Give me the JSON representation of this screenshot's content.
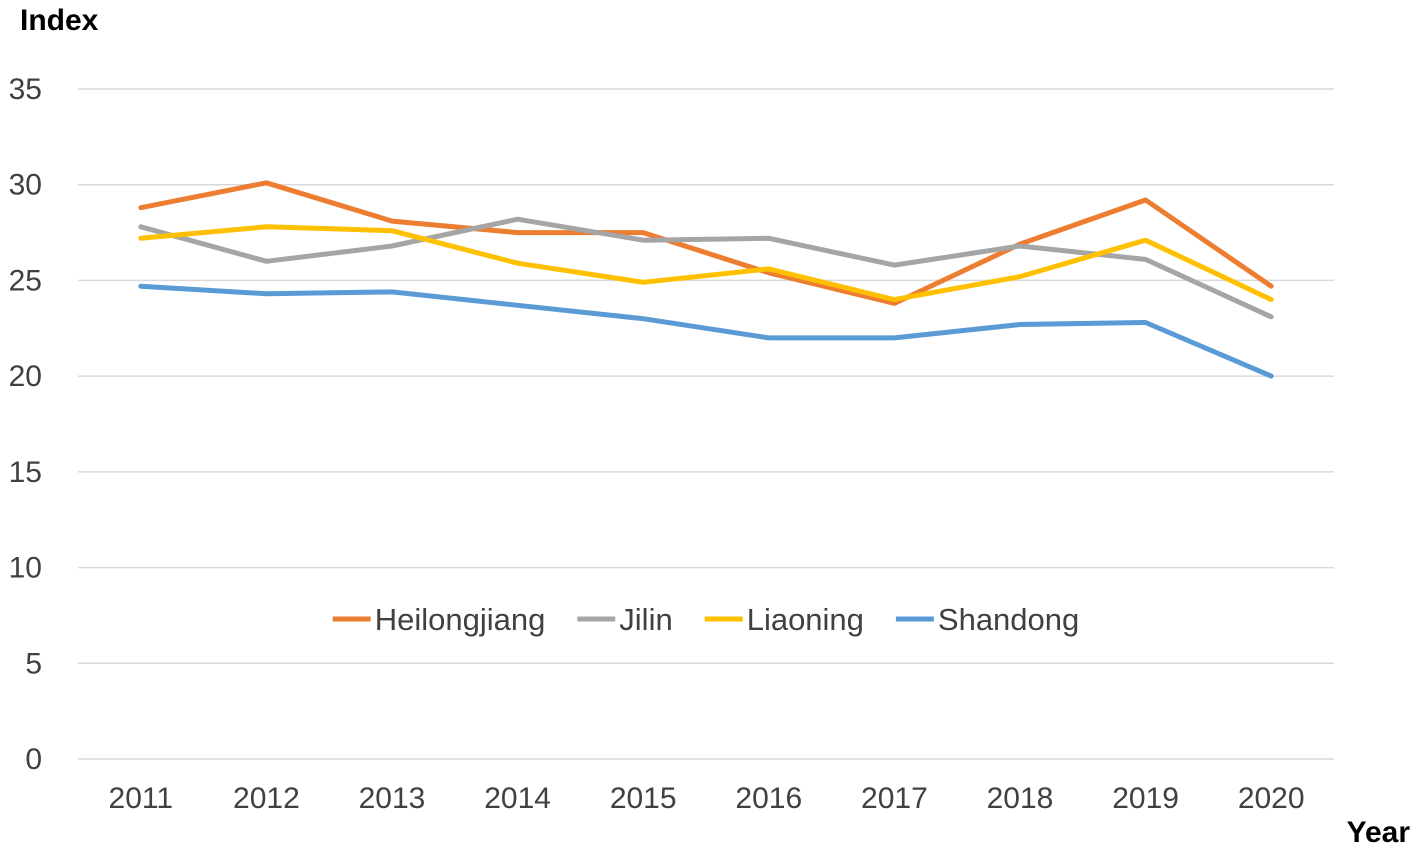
{
  "chart_data": {
    "type": "line",
    "title": "",
    "ylabel": "Index",
    "xlabel": "Year",
    "ylim": [
      0,
      35
    ],
    "yticks": [
      0,
      5,
      10,
      15,
      20,
      25,
      30,
      35
    ],
    "grid": true,
    "legend_position": "bottom-center",
    "categories": [
      "2011",
      "2012",
      "2013",
      "2014",
      "2015",
      "2016",
      "2017",
      "2018",
      "2019",
      "2020"
    ],
    "series": [
      {
        "name": "Heilongjiang",
        "color": "#ED7D31",
        "values": [
          28.8,
          30.1,
          28.1,
          27.5,
          27.5,
          25.4,
          23.8,
          26.9,
          29.2,
          24.7
        ]
      },
      {
        "name": "Jilin",
        "color": "#A5A5A5",
        "values": [
          27.8,
          26.0,
          26.8,
          28.2,
          27.1,
          27.2,
          25.8,
          26.8,
          26.1,
          23.1
        ]
      },
      {
        "name": "Liaoning",
        "color": "#FFC000",
        "values": [
          27.2,
          27.8,
          27.6,
          25.9,
          24.9,
          25.6,
          24.0,
          25.2,
          27.1,
          24.0
        ]
      },
      {
        "name": "Shandong",
        "color": "#5B9BD5",
        "values": [
          24.7,
          24.3,
          24.4,
          23.7,
          23.0,
          22.0,
          22.0,
          22.7,
          22.8,
          20.0
        ]
      }
    ]
  }
}
